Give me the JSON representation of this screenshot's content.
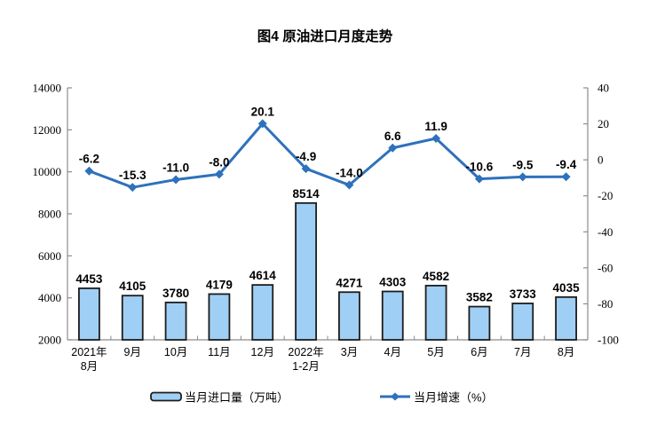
{
  "title": "图4  原油进口月度走势",
  "legend": {
    "bar_label": "当月进口量（万吨）",
    "line_label": "当月增速（%）"
  },
  "chart_data": {
    "type": "combo",
    "categories": [
      "2021年\n8月",
      "9月",
      "10月",
      "11月",
      "12月",
      "2022年\n1-2月",
      "3月",
      "4月",
      "5月",
      "6月",
      "7月",
      "8月"
    ],
    "series": [
      {
        "name": "当月进口量（万吨）",
        "type": "bar",
        "axis": "left",
        "values": [
          4453,
          4105,
          3780,
          4179,
          4614,
          8514,
          4271,
          4303,
          4582,
          3582,
          3733,
          4035
        ],
        "labels": [
          "4453",
          "4105",
          "3780",
          "4179",
          "4614",
          "8514",
          "4271",
          "4303",
          "4582",
          "3582",
          "3733",
          "4035"
        ]
      },
      {
        "name": "当月增速（%）",
        "type": "line",
        "axis": "right",
        "values": [
          -6.2,
          -15.3,
          -11.0,
          -8.0,
          20.1,
          -4.9,
          -14.0,
          6.6,
          11.9,
          -10.6,
          -9.5,
          -9.4
        ],
        "labels": [
          "-6.2",
          "-15.3",
          "-11.0",
          "-8.0",
          "20.1",
          "-4.9",
          "-14.0",
          "6.6",
          "11.9",
          "-10.6",
          "-9.5",
          "-9.4"
        ]
      }
    ],
    "left_axis": {
      "min": 2000,
      "max": 14000,
      "step": 2000,
      "ticks": [
        "14000",
        "12000",
        "10000",
        "8000",
        "6000",
        "4000",
        "2000"
      ]
    },
    "right_axis": {
      "min": -100,
      "max": 40,
      "step": 20,
      "ticks": [
        "40",
        "20",
        "0",
        "-20",
        "-40",
        "-60",
        "-80",
        "-100"
      ]
    },
    "grid": false,
    "legend_position": "bottom",
    "colors": {
      "bar_fill": "#A0CFF5",
      "bar_border": "#1C1C1C",
      "line": "#2E71BC",
      "axis": "#8C8C8C",
      "text": "#000000"
    }
  }
}
